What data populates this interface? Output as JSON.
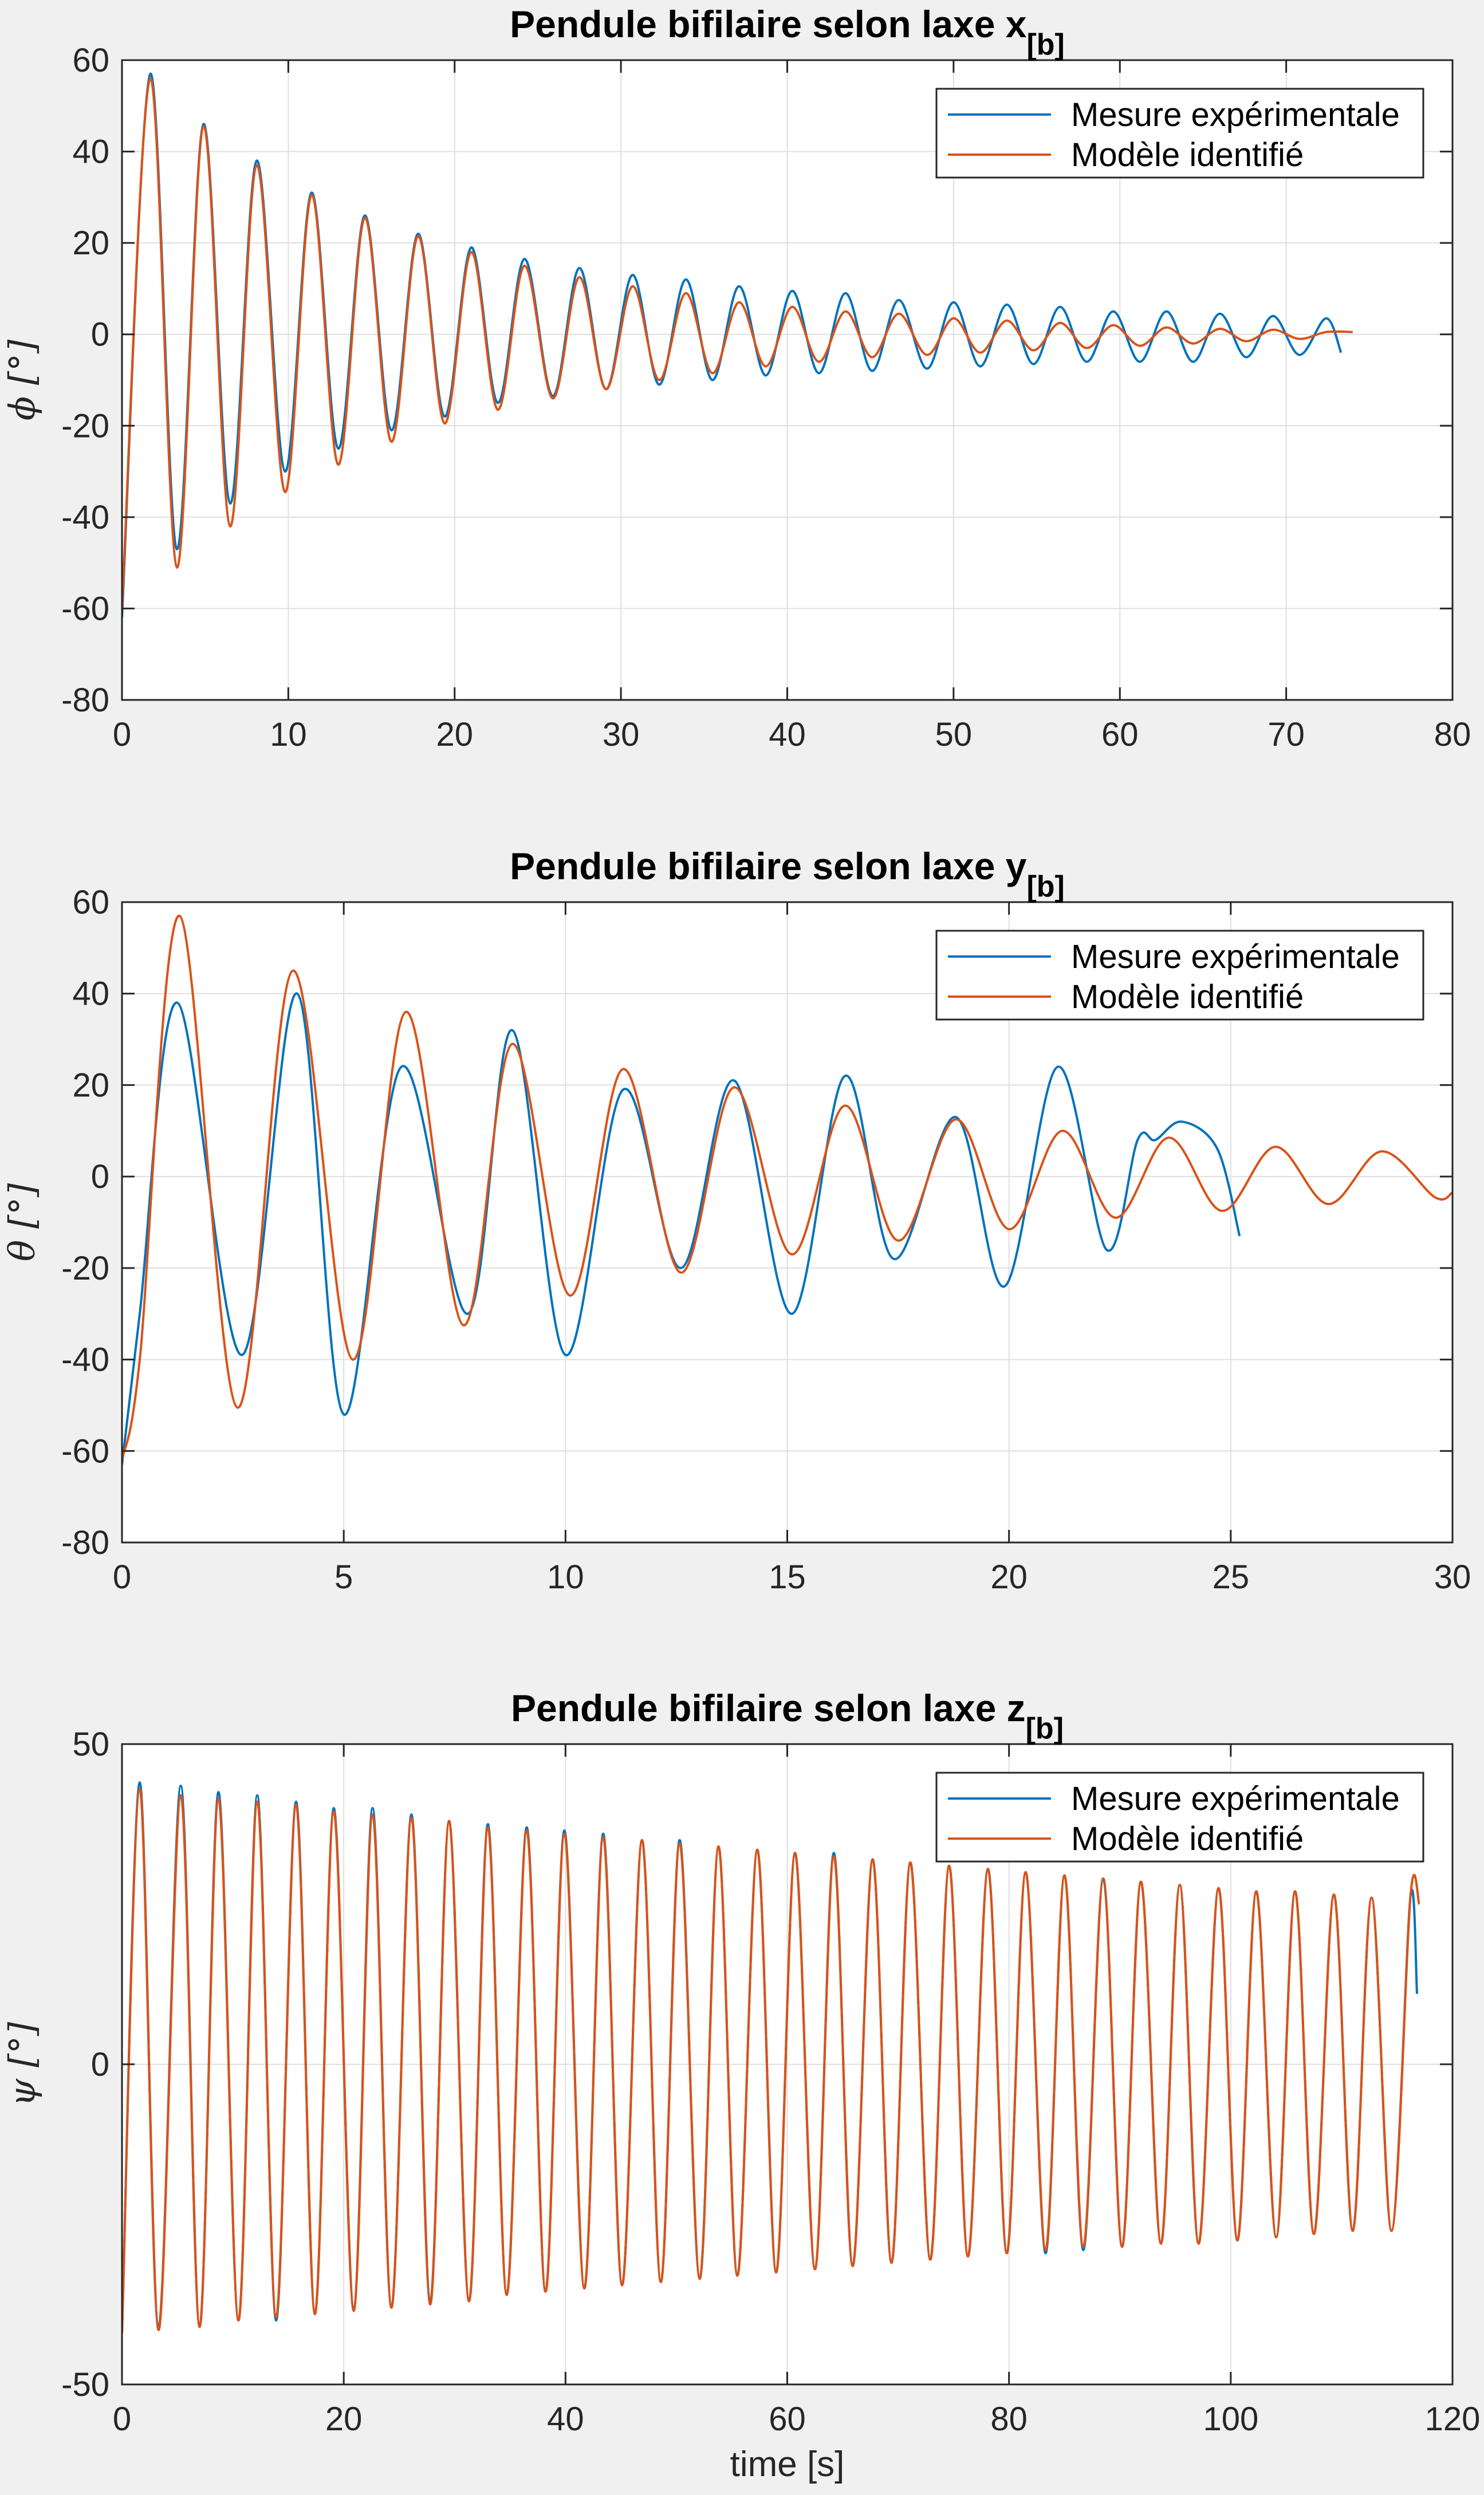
{
  "figure": {
    "background": "#f0f0f0",
    "series_colors": [
      "#0072bd",
      "#d95319"
    ]
  },
  "chart_data": [
    {
      "type": "line",
      "title": "Pendule bifilaire selon laxe x",
      "title_sub": "[b]",
      "xlabel": "",
      "ylabel": "ϕ [°]",
      "xlim": [
        0,
        80
      ],
      "ylim": [
        -80,
        60
      ],
      "xticks": [
        0,
        10,
        20,
        30,
        40,
        50,
        60,
        70,
        80
      ],
      "yticks": [
        -80,
        -60,
        -40,
        -20,
        0,
        20,
        40,
        60
      ],
      "xtick_labels": [
        "0",
        "10",
        "20",
        "30",
        "40",
        "50",
        "60",
        "70",
        "80"
      ],
      "ytick_labels": [
        "-80",
        "-60",
        "-40",
        "-20",
        "0",
        "20",
        "40",
        "60"
      ],
      "grid": true,
      "legend": "top-right",
      "series": [
        {
          "name": "Mesure expérimentale",
          "color": "#0072bd",
          "x": [
            0,
            1.7,
            3.3,
            4.9,
            6.5,
            8.1,
            9.8,
            11.4,
            13.0,
            14.6,
            16.2,
            17.8,
            19.4,
            21.0,
            22.6,
            24.2,
            25.9,
            27.5,
            29.1,
            30.7,
            32.3,
            33.9,
            35.5,
            37.1,
            38.7,
            40.3,
            41.9,
            43.5,
            45.1,
            46.7,
            48.4,
            50.0,
            51.6,
            53.2,
            54.8,
            56.4,
            58.0,
            59.6,
            61.2,
            62.8,
            64.4,
            66.0,
            67.6,
            69.2,
            70.8,
            72.4,
            73.3
          ],
          "y": [
            -62,
            57,
            -47,
            46,
            -37,
            38,
            -30,
            31,
            -25,
            26,
            -21,
            22,
            -18,
            19,
            -15,
            16.5,
            -13.5,
            14.5,
            -12,
            13,
            -11,
            12,
            -10,
            10.5,
            -9,
            9.5,
            -8.5,
            9,
            -8,
            7.5,
            -7.5,
            7,
            -7,
            6.5,
            -6.5,
            6,
            -6,
            5,
            -6,
            5,
            -6,
            4.5,
            -5,
            4,
            -4.5,
            3.5,
            -4
          ]
        },
        {
          "name": "Modèle identifié",
          "color": "#d95319",
          "x": [
            0,
            1.7,
            3.3,
            4.9,
            6.5,
            8.1,
            9.8,
            11.4,
            13.0,
            14.6,
            16.2,
            17.8,
            19.4,
            21.0,
            22.6,
            24.2,
            25.9,
            27.5,
            29.1,
            30.7,
            32.3,
            33.9,
            35.5,
            37.1,
            38.7,
            40.3,
            41.9,
            43.5,
            45.1,
            46.7,
            48.4,
            50.0,
            51.6,
            53.2,
            54.8,
            56.4,
            58.0,
            59.6,
            61.2,
            62.8,
            64.4,
            66.0,
            67.6,
            69.2,
            70.8,
            72.4,
            74.0
          ],
          "y": [
            -60,
            56,
            -51,
            45.5,
            -42,
            37,
            -34.5,
            30.5,
            -28.5,
            25.5,
            -23.5,
            21.5,
            -19.5,
            18,
            -16.5,
            15,
            -14,
            12.5,
            -12,
            10.5,
            -10,
            9,
            -8.5,
            7,
            -7,
            6,
            -6,
            5,
            -5,
            4.5,
            -4.5,
            3.5,
            -4,
            3,
            -3.5,
            2.5,
            -3,
            2,
            -2.5,
            1.5,
            -2,
            1.2,
            -1.5,
            1,
            -1,
            0.5,
            0.5
          ]
        }
      ]
    },
    {
      "type": "line",
      "title": "Pendule bifilaire selon laxe y",
      "title_sub": "[b]",
      "xlabel": "",
      "ylabel": "θ [°]",
      "xlim": [
        0,
        30
      ],
      "ylim": [
        -80,
        60
      ],
      "xticks": [
        0,
        5,
        10,
        15,
        20,
        25,
        30
      ],
      "yticks": [
        -80,
        -60,
        -40,
        -20,
        0,
        20,
        40,
        60
      ],
      "xtick_labels": [
        "0",
        "5",
        "10",
        "15",
        "20",
        "25",
        "30"
      ],
      "ytick_labels": [
        "-80",
        "-60",
        "-40",
        "-20",
        "0",
        "20",
        "40",
        "60"
      ],
      "grid": true,
      "legend": "top-right",
      "series": [
        {
          "name": "Mesure expérimentale",
          "color": "#0072bd",
          "x": [
            0,
            0.4,
            1.25,
            2.7,
            3.95,
            5.0,
            6.3,
            7.8,
            8.8,
            10.0,
            11.3,
            12.6,
            13.8,
            15.1,
            16.3,
            17.4,
            18.8,
            19.9,
            21.1,
            22.2,
            22.9,
            23.3,
            23.9,
            24.7,
            25.2
          ],
          "y": [
            -63,
            -30,
            38,
            -39,
            40,
            -52,
            24,
            -30,
            32,
            -39,
            19,
            -20,
            21,
            -30,
            22,
            -18,
            13,
            -24,
            24,
            -16,
            8,
            8,
            12,
            6,
            -13
          ]
        },
        {
          "name": "Modèle identifié",
          "color": "#d95319",
          "x": [
            0,
            0.4,
            1.3,
            2.6,
            3.85,
            5.2,
            6.4,
            7.7,
            8.8,
            10.1,
            11.3,
            12.6,
            13.8,
            15.1,
            16.3,
            17.5,
            18.8,
            20.0,
            21.2,
            22.4,
            23.6,
            24.8,
            26.0,
            27.2,
            28.4,
            29.6,
            30.0
          ],
          "y": [
            -62,
            -40,
            57,
            -50.5,
            45,
            -40,
            36,
            -32.5,
            29,
            -26,
            23.5,
            -21,
            19.5,
            -17,
            15.5,
            -14,
            12.5,
            -11.5,
            10,
            -9,
            8.5,
            -7.5,
            6.5,
            -6,
            5.5,
            -4.5,
            -3.5
          ]
        }
      ]
    },
    {
      "type": "line",
      "title": "Pendule bifilaire selon laxe z",
      "title_sub": "[b]",
      "xlabel": "time [s]",
      "ylabel": "ψ [°]",
      "xlim": [
        0,
        120
      ],
      "ylim": [
        -50,
        50
      ],
      "xticks": [
        0,
        20,
        40,
        60,
        80,
        100,
        120
      ],
      "yticks": [
        -50,
        0,
        50
      ],
      "xtick_labels": [
        "0",
        "20",
        "40",
        "60",
        "80",
        "100",
        "120"
      ],
      "ytick_labels": [
        "-50",
        "0",
        "50"
      ],
      "grid": true,
      "legend": "top-right",
      "series": [
        {
          "name": "Mesure expérimentale",
          "color": "#0072bd",
          "x": [
            0,
            1.6,
            3.3,
            5.3,
            7.0,
            8.7,
            10.5,
            12.2,
            13.9,
            15.7,
            17.4,
            19.1,
            20.9,
            22.6,
            24.3,
            26.1,
            27.8,
            29.5,
            31.3,
            33.0,
            34.7,
            36.5,
            38.2,
            39.9,
            41.7,
            43.4,
            45.1,
            46.9,
            48.6,
            50.3,
            52.1,
            53.8,
            55.5,
            57.3,
            59.0,
            60.7,
            62.5,
            64.2,
            65.9,
            67.7,
            69.4,
            71.1,
            72.9,
            74.6,
            76.3,
            78.1,
            79.8,
            81.5,
            83.3,
            85.0,
            86.7,
            88.5,
            90.2,
            91.9,
            93.7,
            95.4,
            97.1,
            98.9,
            100.6,
            102.3,
            104.1,
            105.8,
            107.5,
            109.3,
            111.0,
            112.7,
            114.5,
            116.2,
            116.8
          ],
          "y": [
            -42,
            44,
            -41,
            43.5,
            -41,
            42.5,
            -40,
            42,
            -40,
            41,
            -39,
            40,
            -38,
            40,
            -38,
            39,
            -37,
            38,
            -37,
            37.5,
            -36,
            37,
            -35.5,
            36.5,
            -35,
            36,
            -34.5,
            35,
            -34,
            35,
            -33.5,
            34,
            -33,
            33.5,
            -32.5,
            33,
            -32,
            33,
            -31.5,
            32,
            -31,
            31.5,
            -30.5,
            31,
            -30,
            30.5,
            -29.5,
            30,
            -29.5,
            29.5,
            -29,
            29,
            -28.5,
            28.5,
            -28,
            28,
            -28,
            27.5,
            -27.5,
            27,
            -27,
            27,
            -26.5,
            26.5,
            -26,
            26,
            -26,
            26,
            11
          ]
        },
        {
          "name": "Modèle identifié",
          "color": "#d95319",
          "x": [
            0,
            1.6,
            3.3,
            5.3,
            7.0,
            8.7,
            10.5,
            12.2,
            13.9,
            15.7,
            17.4,
            19.1,
            20.9,
            22.6,
            24.3,
            26.1,
            27.8,
            29.5,
            31.3,
            33.0,
            34.7,
            36.5,
            38.2,
            39.9,
            41.7,
            43.4,
            45.1,
            46.9,
            48.6,
            50.3,
            52.1,
            53.8,
            55.5,
            57.3,
            59.0,
            60.7,
            62.5,
            64.2,
            65.9,
            67.7,
            69.4,
            71.1,
            72.9,
            74.6,
            76.3,
            78.1,
            79.8,
            81.5,
            83.3,
            85.0,
            86.7,
            88.5,
            90.2,
            91.9,
            93.7,
            95.4,
            97.1,
            98.9,
            100.6,
            102.3,
            104.1,
            105.8,
            107.5,
            109.3,
            111.0,
            112.7,
            114.5,
            116.2,
            117.0
          ],
          "y": [
            -42,
            43,
            -41.5,
            42,
            -41,
            41.5,
            -40,
            41,
            -39.5,
            40.5,
            -39,
            39.5,
            -38.5,
            39,
            -38,
            38.5,
            -37.5,
            38,
            -37,
            37,
            -36,
            36.5,
            -35.5,
            36,
            -35,
            35.5,
            -34.5,
            35,
            -34,
            34.5,
            -33.5,
            34,
            -33,
            33.5,
            -32.5,
            33,
            -32,
            32.5,
            -31.5,
            32,
            -31,
            31.5,
            -30.5,
            31,
            -30,
            30.5,
            -29.5,
            30,
            -29,
            29.5,
            -28.5,
            29,
            -28.5,
            28.5,
            -28,
            28,
            -28,
            27.5,
            -27.5,
            27,
            -27,
            27,
            -26.5,
            26.5,
            -26,
            26,
            -26,
            26,
            25
          ]
        }
      ]
    }
  ]
}
